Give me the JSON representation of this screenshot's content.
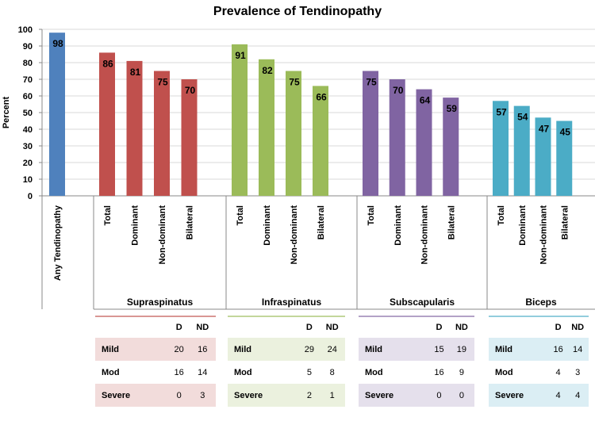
{
  "chart_data": {
    "type": "bar",
    "title": "Prevalence of Tendinopathy",
    "ylabel": "Percent",
    "ylim": [
      0,
      100
    ],
    "ytick_step": 10,
    "grid": true,
    "legend": "none",
    "groups": [
      {
        "name": "",
        "color": "#4F81BD",
        "categories": [
          "Any Tendinopathy"
        ],
        "values": [
          98
        ]
      },
      {
        "name": "Supraspinatus",
        "color": "#C0504D",
        "categories": [
          "Total",
          "Dominant",
          "Non-dominant",
          "Bilateral"
        ],
        "values": [
          86,
          81,
          75,
          70
        ]
      },
      {
        "name": "Infraspinatus",
        "color": "#9BBB59",
        "categories": [
          "Total",
          "Dominant",
          "Non-dominant",
          "Bilateral"
        ],
        "values": [
          91,
          82,
          75,
          66
        ]
      },
      {
        "name": "Subscapularis",
        "color": "#8064A2",
        "categories": [
          "Total",
          "Dominant",
          "Non-dominant",
          "Bilateral"
        ],
        "values": [
          75,
          70,
          64,
          59
        ]
      },
      {
        "name": "Biceps",
        "color": "#4BACC6",
        "categories": [
          "Total",
          "Dominant",
          "Non-dominant",
          "Bilateral"
        ],
        "values": [
          57,
          54,
          47,
          45
        ]
      }
    ]
  },
  "severity_tables": {
    "headers": [
      "D",
      "ND"
    ],
    "groups": [
      {
        "name": "Supraspinatus",
        "band_color": "#F2DCDB",
        "line_color": "#D99694",
        "rows": [
          {
            "label": "Mild",
            "d": "20",
            "nd": "16"
          },
          {
            "label": "Mod",
            "d": "16",
            "nd": "14"
          },
          {
            "label": "Severe",
            "d": "0",
            "nd": "3"
          }
        ]
      },
      {
        "name": "Infraspinatus",
        "band_color": "#EBF1DE",
        "line_color": "#C3D69B",
        "rows": [
          {
            "label": "Mild",
            "d": "29",
            "nd": "24"
          },
          {
            "label": "Mod",
            "d": "5",
            "nd": "8"
          },
          {
            "label": "Severe",
            "d": "2",
            "nd": "1"
          }
        ]
      },
      {
        "name": "Subscapularis",
        "band_color": "#E5E0EC",
        "line_color": "#B3A2C7",
        "rows": [
          {
            "label": "Mild",
            "d": "15",
            "nd": "19"
          },
          {
            "label": "Mod",
            "d": "16",
            "nd": "9"
          },
          {
            "label": "Severe",
            "d": "0",
            "nd": "0"
          }
        ]
      },
      {
        "name": "Biceps",
        "band_color": "#DBEEF4",
        "line_color": "#93CDDD",
        "rows": [
          {
            "label": "Mild",
            "d": "16",
            "nd": "14"
          },
          {
            "label": "Mod",
            "d": "4",
            "nd": "3"
          },
          {
            "label": "Severe",
            "d": "4",
            "nd": "4"
          }
        ]
      }
    ]
  }
}
